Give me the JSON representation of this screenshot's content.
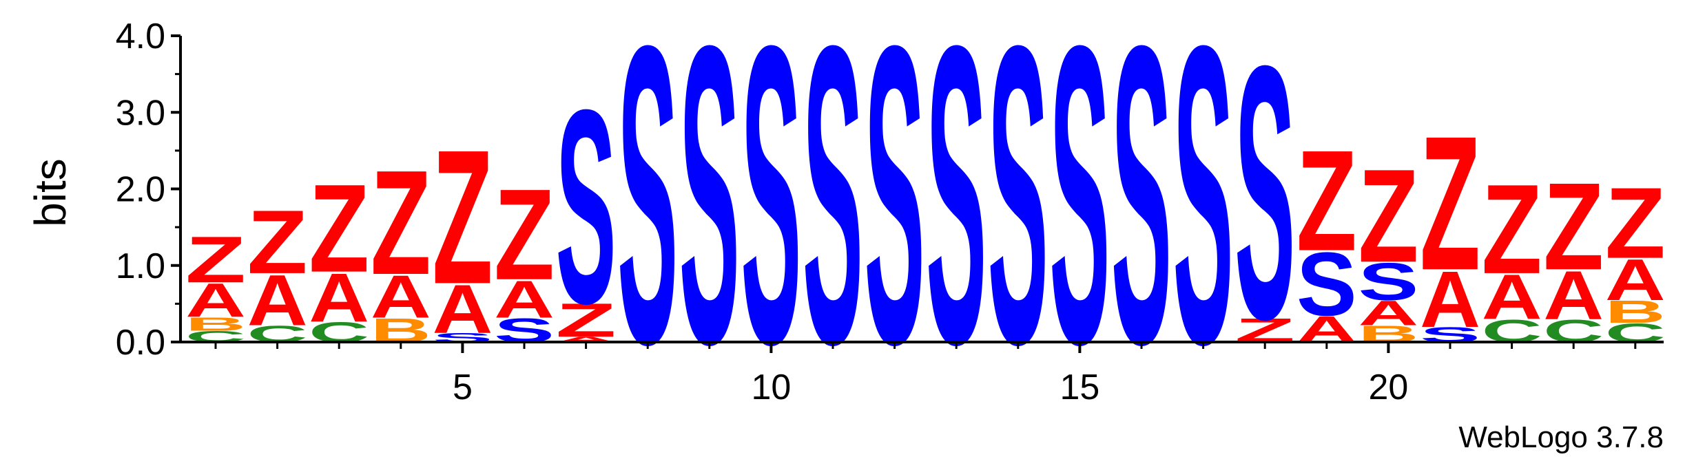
{
  "chart_data": {
    "type": "sequence-logo",
    "ylabel": "bits",
    "ylim": [
      0,
      4.0
    ],
    "y_ticks": [
      "0.0",
      "1.0",
      "2.0",
      "3.0",
      "4.0"
    ],
    "x_ticks": [
      "5",
      "10",
      "15",
      "20"
    ],
    "x_tick_positions": [
      5,
      10,
      15,
      20
    ],
    "positions": [
      1,
      2,
      3,
      4,
      5,
      6,
      7,
      8,
      9,
      10,
      11,
      12,
      13,
      14,
      15,
      16,
      17,
      18,
      19,
      20,
      21,
      22,
      23,
      24
    ],
    "colors": {
      "Z": "#ff0000",
      "A": "#ff0000",
      "S": "#0000ff",
      "B": "#ff8c00",
      "C": "#228b22"
    },
    "stacks": [
      [
        {
          "letter": "C",
          "height": 0.15
        },
        {
          "letter": "B",
          "height": 0.18
        },
        {
          "letter": "A",
          "height": 0.45
        },
        {
          "letter": "Z",
          "height": 0.62
        }
      ],
      [
        {
          "letter": "C",
          "height": 0.22
        },
        {
          "letter": "A",
          "height": 0.68
        },
        {
          "letter": "Z",
          "height": 0.85
        }
      ],
      [
        {
          "letter": "C",
          "height": 0.27
        },
        {
          "letter": "A",
          "height": 0.65
        },
        {
          "letter": "Z",
          "height": 1.18
        }
      ],
      [
        {
          "letter": "B",
          "height": 0.32
        },
        {
          "letter": "A",
          "height": 0.57
        },
        {
          "letter": "Z",
          "height": 1.4
        }
      ],
      [
        {
          "letter": "S",
          "height": 0.12
        },
        {
          "letter": "A",
          "height": 0.65
        },
        {
          "letter": "Z",
          "height": 1.8
        }
      ],
      [
        {
          "letter": "S",
          "height": 0.32
        },
        {
          "letter": "A",
          "height": 0.5
        },
        {
          "letter": "Z",
          "height": 1.22
        }
      ],
      [
        {
          "letter": "A",
          "height": 0.07
        },
        {
          "letter": "Z",
          "height": 0.45
        },
        {
          "letter": "S",
          "height": 2.6
        }
      ],
      [
        {
          "letter": "S",
          "height": 4.0
        }
      ],
      [
        {
          "letter": "S",
          "height": 4.0
        }
      ],
      [
        {
          "letter": "S",
          "height": 4.0
        }
      ],
      [
        {
          "letter": "S",
          "height": 4.0
        }
      ],
      [
        {
          "letter": "S",
          "height": 4.0
        }
      ],
      [
        {
          "letter": "S",
          "height": 4.0
        }
      ],
      [
        {
          "letter": "S",
          "height": 4.0
        }
      ],
      [
        {
          "letter": "S",
          "height": 4.0
        }
      ],
      [
        {
          "letter": "S",
          "height": 4.0
        }
      ],
      [
        {
          "letter": "S",
          "height": 4.0
        }
      ],
      [
        {
          "letter": "Z",
          "height": 0.32
        },
        {
          "letter": "S",
          "height": 3.4
        }
      ],
      [
        {
          "letter": "A",
          "height": 0.35
        },
        {
          "letter": "S",
          "height": 0.85
        },
        {
          "letter": "Z",
          "height": 1.35
        }
      ],
      [
        {
          "letter": "B",
          "height": 0.22
        },
        {
          "letter": "A",
          "height": 0.33
        },
        {
          "letter": "S",
          "height": 0.5
        },
        {
          "letter": "Z",
          "height": 1.25
        }
      ],
      [
        {
          "letter": "S",
          "height": 0.2
        },
        {
          "letter": "A",
          "height": 0.75
        },
        {
          "letter": "Z",
          "height": 1.8
        }
      ],
      [
        {
          "letter": "C",
          "height": 0.3
        },
        {
          "letter": "A",
          "height": 0.6
        },
        {
          "letter": "Z",
          "height": 1.2
        }
      ],
      [
        {
          "letter": "C",
          "height": 0.3
        },
        {
          "letter": "A",
          "height": 0.65
        },
        {
          "letter": "Z",
          "height": 1.17
        }
      ],
      [
        {
          "letter": "C",
          "height": 0.25
        },
        {
          "letter": "B",
          "height": 0.3
        },
        {
          "letter": "A",
          "height": 0.55
        },
        {
          "letter": "Z",
          "height": 0.95
        }
      ]
    ]
  },
  "credit": "WebLogo 3.7.8"
}
